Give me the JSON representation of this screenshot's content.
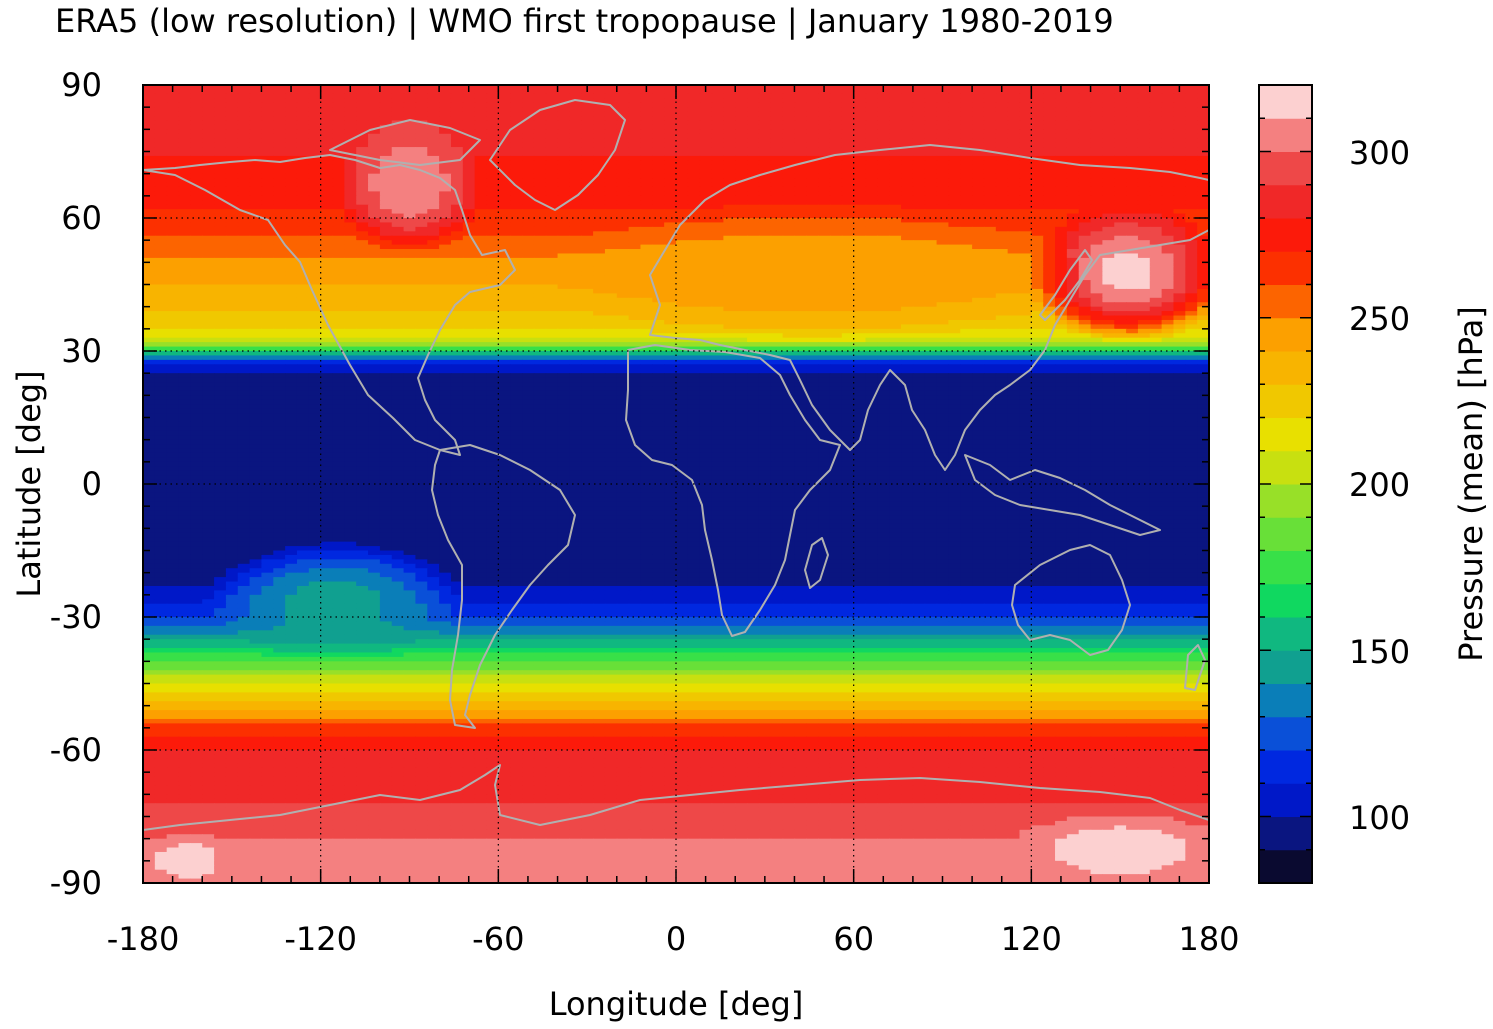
{
  "title": "ERA5 (low resolution) | WMO first tropopause | January 1980-2019",
  "chart_data": {
    "type": "heatmap",
    "x_label": "Longitude [deg]",
    "y_label": "Latitude [deg]",
    "x_range": [
      -180,
      180
    ],
    "y_range": [
      -90,
      90
    ],
    "x_ticks": [
      "-180",
      "-120",
      "-60",
      "0",
      "60",
      "120",
      "180"
    ],
    "y_ticks": [
      "90",
      "60",
      "30",
      "0",
      "-30",
      "-60",
      "-90"
    ],
    "grid": "dotted",
    "colorbar": {
      "label": "Pressure (mean) [hPa]",
      "range": [
        80,
        320
      ],
      "ticks": [
        "100",
        "150",
        "200",
        "250",
        "300"
      ],
      "tick_values": [
        100,
        150,
        200,
        250,
        300
      ],
      "levels": [
        80,
        90,
        100,
        110,
        120,
        130,
        140,
        150,
        160,
        170,
        180,
        190,
        200,
        210,
        220,
        230,
        240,
        250,
        260,
        270,
        280,
        290,
        300,
        310,
        320
      ],
      "colors": [
        "#0a0a30",
        "#0a1580",
        "#0018c8",
        "#0028e0",
        "#0a50d8",
        "#0a7eb8",
        "#10a090",
        "#10b880",
        "#10d860",
        "#38e048",
        "#68e038",
        "#98e028",
        "#c8e010",
        "#e8e000",
        "#f0c800",
        "#f8b400",
        "#fca000",
        "#fc6400",
        "#fc3000",
        "#fc1a0a",
        "#f02828",
        "#ee4848",
        "#f48080",
        "#fcd0d0"
      ]
    },
    "zonal_mean_profile": {
      "latitude": [
        -90,
        -80,
        -70,
        -65,
        -60,
        -55,
        -50,
        -45,
        -40,
        -35,
        -30,
        -25,
        -20,
        -15,
        -10,
        0,
        10,
        20,
        25,
        28,
        30,
        32,
        35,
        40,
        45,
        50,
        55,
        60,
        70,
        80,
        90
      ],
      "pressure_hPa": [
        300,
        300,
        288,
        285,
        280,
        265,
        232,
        212,
        180,
        148,
        118,
        104,
        94,
        90,
        90,
        90,
        90,
        90,
        96,
        120,
        160,
        205,
        222,
        232,
        240,
        248,
        258,
        268,
        276,
        286,
        285
      ]
    },
    "regional_features": [
      {
        "lon_range": [
          -150,
          -80
        ],
        "lat_range": [
          -38,
          -15
        ],
        "pressure_hPa": 145
      },
      {
        "lon_range": [
          -110,
          -70
        ],
        "lat_range": [
          55,
          80
        ],
        "pressure_hPa": 308
      },
      {
        "lon_range": [
          125,
          180
        ],
        "lat_range": [
          35,
          60
        ],
        "pressure_hPa": 315
      },
      {
        "lon_range": [
          120,
          180
        ],
        "lat_range": [
          -90,
          -75
        ],
        "pressure_hPa": 315
      },
      {
        "lon_range": [
          -180,
          -150
        ],
        "lat_range": [
          -90,
          -80
        ],
        "pressure_hPa": 315
      },
      {
        "lon_range": [
          -30,
          120
        ],
        "lat_range": [
          35,
          60
        ],
        "pressure_hPa": 245
      }
    ]
  }
}
